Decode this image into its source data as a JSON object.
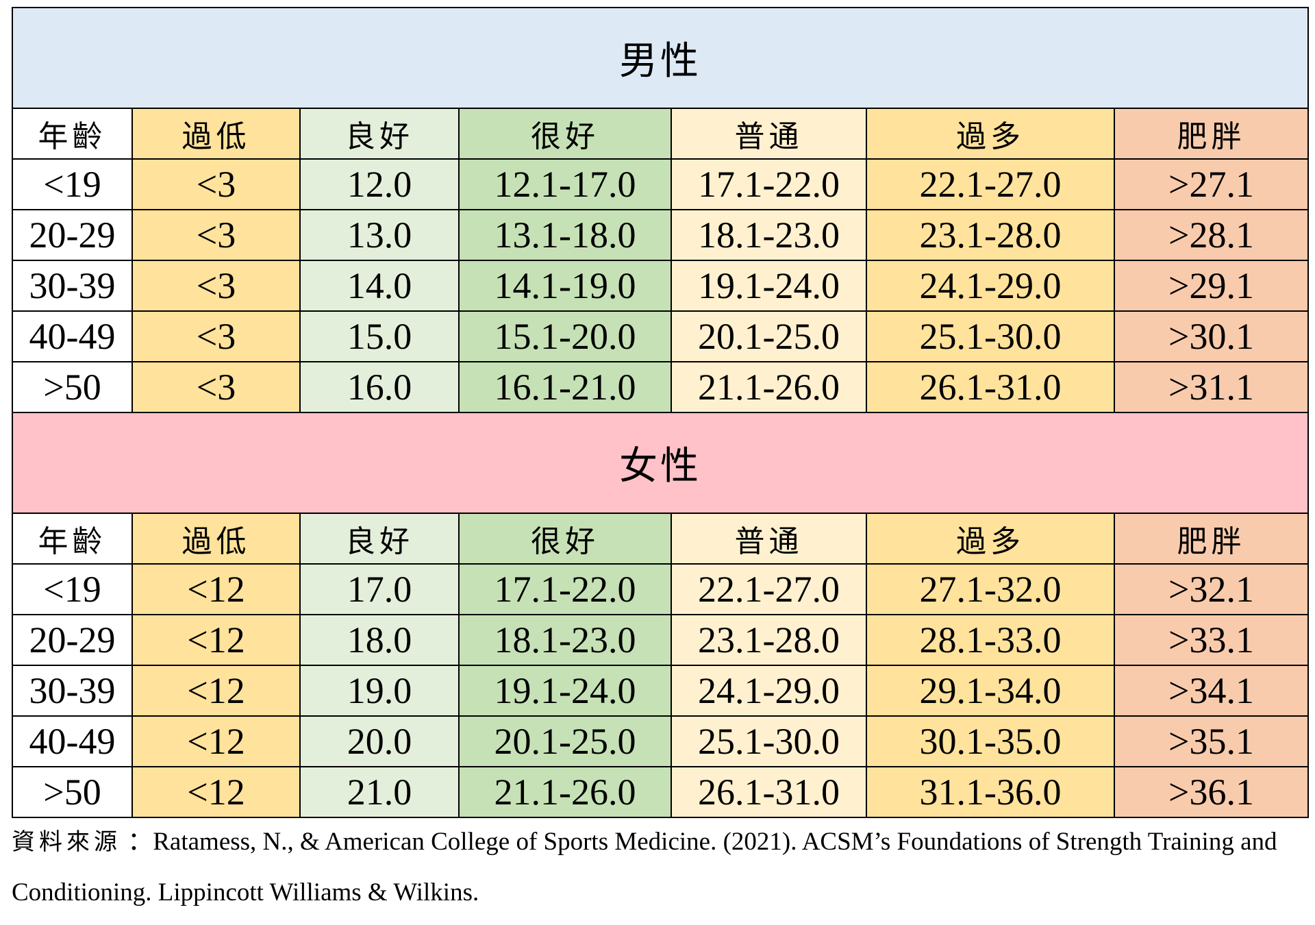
{
  "chart_data": {
    "type": "table",
    "columns": [
      "年齡",
      "過低",
      "良好",
      "很好",
      "普通",
      "過多",
      "肥胖"
    ],
    "sections": [
      {
        "title": "男性",
        "color": "#dee9f6",
        "rows": [
          [
            "<19",
            "<3",
            "12.0",
            "12.1-17.0",
            "17.1-22.0",
            "22.1-27.0",
            ">27.1"
          ],
          [
            "20-29",
            "<3",
            "13.0",
            "13.1-18.0",
            "18.1-23.0",
            "23.1-28.0",
            ">28.1"
          ],
          [
            "30-39",
            "<3",
            "14.0",
            "14.1-19.0",
            "19.1-24.0",
            "24.1-29.0",
            ">29.1"
          ],
          [
            "40-49",
            "<3",
            "15.0",
            "15.1-20.0",
            "20.1-25.0",
            "25.1-30.0",
            ">30.1"
          ],
          [
            ">50",
            "<3",
            "16.0",
            "16.1-21.0",
            "21.1-26.0",
            "26.1-31.0",
            ">31.1"
          ]
        ]
      },
      {
        "title": "女性",
        "color": "#ffc2c8",
        "rows": [
          [
            "<19",
            "<12",
            "17.0",
            "17.1-22.0",
            "22.1-27.0",
            "27.1-32.0",
            ">32.1"
          ],
          [
            "20-29",
            "<12",
            "18.0",
            "18.1-23.0",
            "23.1-28.0",
            "28.1-33.0",
            ">33.1"
          ],
          [
            "30-39",
            "<12",
            "19.0",
            "19.1-24.0",
            "24.1-29.0",
            "29.1-34.0",
            ">34.1"
          ],
          [
            "40-49",
            "<12",
            "20.0",
            "20.1-25.0",
            "25.1-30.0",
            "30.1-35.0",
            ">35.1"
          ],
          [
            ">50",
            "<12",
            "21.0",
            "21.1-26.0",
            "26.1-31.0",
            "31.1-36.0",
            ">36.1"
          ]
        ]
      }
    ],
    "column_colors": [
      "#ffffff",
      "#ffe29b",
      "#e3efda",
      "#c6e1b5",
      "#fff1cf",
      "#ffe29b",
      "#f8cbac"
    ]
  },
  "source": {
    "label": "資料來源",
    "text": "：Ratamess, N., & American College of Sports Medicine. (2021). ACSM’s Foundations of Strength Training and Conditioning. Lippincott Williams & Wilkins."
  }
}
